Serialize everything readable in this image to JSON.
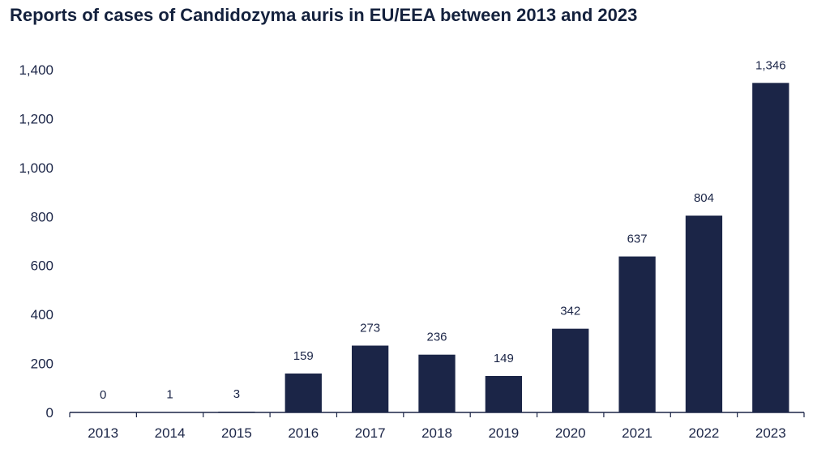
{
  "chart_data": {
    "type": "bar",
    "title": "Reports of cases of Candidozyma auris in EU/EEA between 2013 and 2023",
    "xlabel": "",
    "ylabel": "",
    "categories": [
      "2013",
      "2014",
      "2015",
      "2016",
      "2017",
      "2018",
      "2019",
      "2020",
      "2021",
      "2022",
      "2023"
    ],
    "values": [
      0,
      1,
      3,
      159,
      273,
      236,
      149,
      342,
      637,
      804,
      1346
    ],
    "value_labels": [
      "0",
      "1",
      "3",
      "159",
      "273",
      "236",
      "149",
      "342",
      "637",
      "804",
      "1,346"
    ],
    "ylim": [
      0,
      1400
    ],
    "yticks": [
      0,
      200,
      400,
      600,
      800,
      1000,
      1200,
      1400
    ],
    "ytick_labels": [
      "0",
      "200",
      "400",
      "600",
      "800",
      "1,000",
      "1,200",
      "1,400"
    ],
    "grid": false,
    "legend": "none",
    "bar_color": "#1b2547"
  }
}
